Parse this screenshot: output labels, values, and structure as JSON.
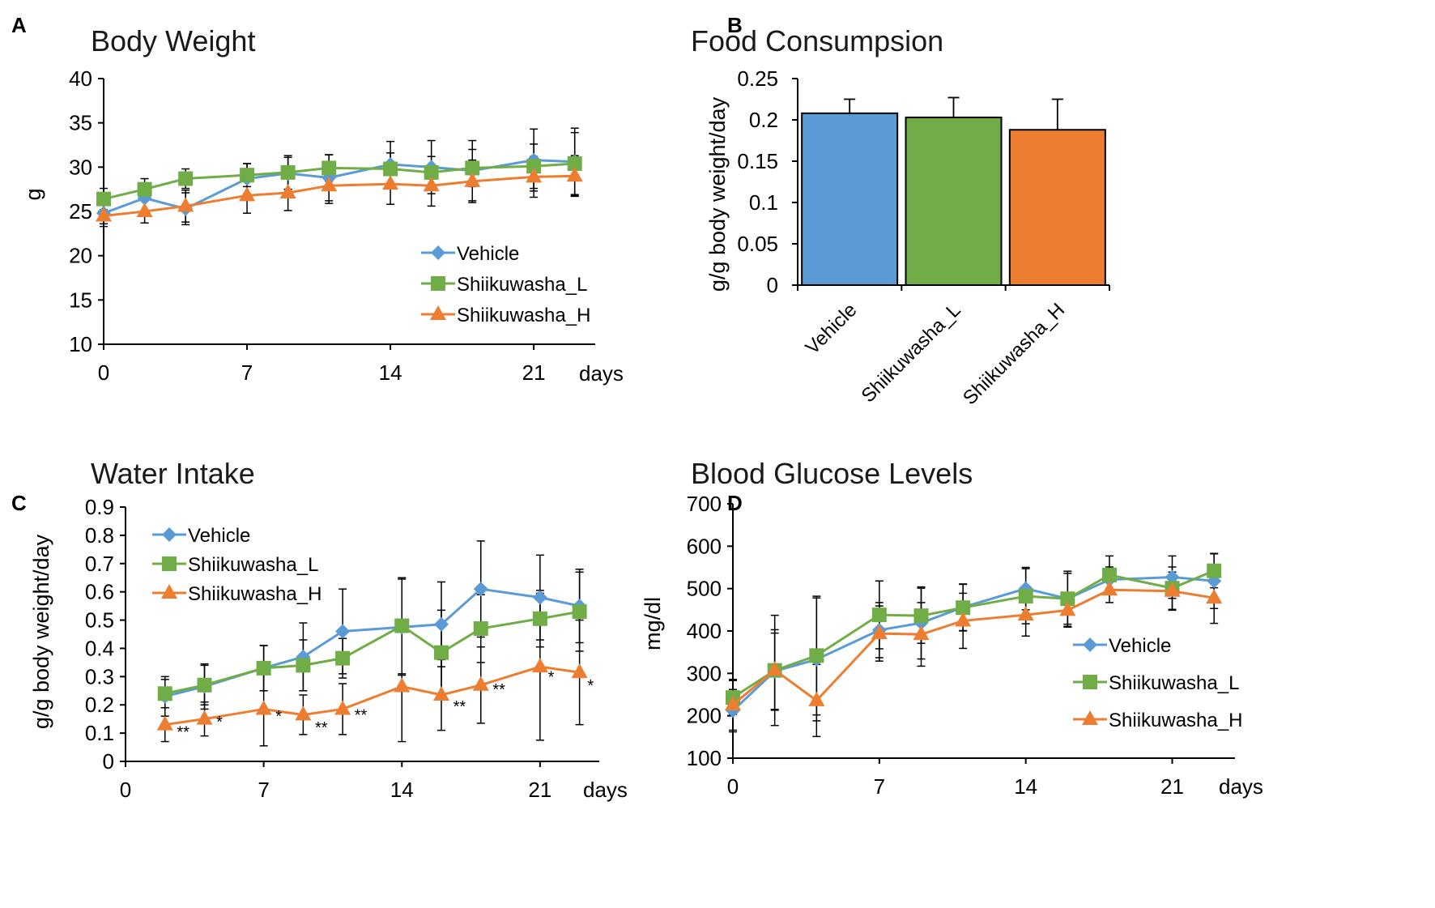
{
  "colors": {
    "vehicle": "#5b9bd5",
    "low": "#70ad47",
    "high": "#ed7d31",
    "axis": "#000000"
  },
  "panels": {
    "A": {
      "letter": "A"
    },
    "B": {
      "letter": "B"
    },
    "C": {
      "letter": "C"
    },
    "D": {
      "letter": "D"
    }
  },
  "chart_data": [
    {
      "id": "A",
      "type": "line",
      "title": "Body Weight",
      "xlabel": "days",
      "ylabel": "g",
      "xlim": [
        0,
        24
      ],
      "xticks": [
        0,
        7,
        14,
        21
      ],
      "ylim": [
        10,
        40
      ],
      "yticks": [
        10,
        15,
        20,
        25,
        30,
        35,
        40
      ],
      "legend_position": "bottom-right",
      "series": [
        {
          "name": "Vehicle",
          "key": "vehicle",
          "marker": "diamond",
          "x": [
            0,
            2,
            4,
            7,
            9,
            11,
            14,
            16,
            18,
            21,
            23
          ],
          "y": [
            24.8,
            26.5,
            25.3,
            28.7,
            29.3,
            28.8,
            30.3,
            30.0,
            29.6,
            30.8,
            30.6
          ],
          "err": [
            1.2,
            1.5,
            1.8,
            1.7,
            1.8,
            2.6,
            2.6,
            3.0,
            3.4,
            3.5,
            3.8
          ]
        },
        {
          "name": "Shiikuwasha_L",
          "key": "low",
          "marker": "square",
          "x": [
            0,
            2,
            4,
            7,
            9,
            11,
            14,
            16,
            18,
            21,
            23
          ],
          "y": [
            26.4,
            27.5,
            28.7,
            29.1,
            29.4,
            29.9,
            29.8,
            29.4,
            29.9,
            30.1,
            30.4
          ],
          "err": [
            1.2,
            1.2,
            1.1,
            1.3,
            1.9,
            1.5,
            1.8,
            1.8,
            2.1,
            2.5,
            3.5
          ]
        },
        {
          "name": "Shiikuwasha_H",
          "key": "high",
          "marker": "triangle",
          "x": [
            0,
            2,
            4,
            7,
            9,
            11,
            14,
            16,
            18,
            21,
            23
          ],
          "y": [
            24.5,
            25.0,
            25.6,
            26.8,
            27.1,
            27.9,
            28.1,
            27.9,
            28.4,
            28.9,
            29.0
          ],
          "err": [
            1.2,
            1.3,
            1.8,
            2.0,
            2.0,
            2.0,
            2.3,
            2.3,
            2.4,
            2.3,
            2.3
          ]
        }
      ]
    },
    {
      "id": "B",
      "type": "bar",
      "title": "Food Consumpsion",
      "ylabel": "g/g body weight/day",
      "categories": [
        "Vehicle",
        "Shiikuwasha_L",
        "Shiikuwasha_H"
      ],
      "category_keys": [
        "vehicle",
        "low",
        "high"
      ],
      "values": [
        0.208,
        0.203,
        0.188
      ],
      "err": [
        0.017,
        0.024,
        0.037
      ],
      "ylim": [
        0,
        0.25
      ],
      "yticks": [
        0,
        0.05,
        0.1,
        0.15,
        0.2,
        0.25
      ],
      "yticklabels": [
        "0",
        "0.05",
        "0.1",
        "0.15",
        "0.2",
        "0.25"
      ]
    },
    {
      "id": "C",
      "type": "line",
      "title": "Water Intake",
      "xlabel": "days",
      "ylabel": "g/g body weight/day",
      "xlim": [
        0,
        24
      ],
      "xticks": [
        0,
        7,
        14,
        21
      ],
      "ylim": [
        0,
        0.9
      ],
      "yticks": [
        0,
        0.1,
        0.2,
        0.3,
        0.4,
        0.5,
        0.6,
        0.7,
        0.8,
        0.9
      ],
      "yticklabels": [
        "0",
        "0.1",
        "0.2",
        "0.3",
        "0.4",
        "0.5",
        "0.6",
        "0.7",
        "0.8",
        "0.9"
      ],
      "legend_position": "top-left",
      "series": [
        {
          "name": "Vehicle",
          "key": "vehicle",
          "marker": "diamond",
          "x": [
            2,
            4,
            7,
            9,
            11,
            14,
            16,
            18,
            21,
            23
          ],
          "y": [
            0.23,
            0.265,
            0.33,
            0.37,
            0.46,
            0.475,
            0.485,
            0.61,
            0.58,
            0.55
          ],
          "err": [
            0.07,
            0.08,
            0.08,
            0.12,
            0.15,
            0.17,
            0.15,
            0.17,
            0.15,
            0.13
          ]
        },
        {
          "name": "Shiikuwasha_L",
          "key": "low",
          "marker": "square",
          "x": [
            2,
            4,
            7,
            9,
            11,
            14,
            16,
            18,
            21,
            23
          ],
          "y": [
            0.24,
            0.27,
            0.33,
            0.34,
            0.365,
            0.48,
            0.385,
            0.47,
            0.505,
            0.53
          ],
          "err": [
            0.05,
            0.07,
            0.08,
            0.09,
            0.07,
            0.17,
            0.15,
            0.12,
            0.1,
            0.14
          ]
        },
        {
          "name": "Shiikuwasha_H",
          "key": "high",
          "marker": "triangle",
          "x": [
            2,
            4,
            7,
            9,
            11,
            14,
            16,
            18,
            21,
            23
          ],
          "y": [
            0.13,
            0.15,
            0.185,
            0.165,
            0.185,
            0.265,
            0.235,
            0.27,
            0.335,
            0.315
          ],
          "err": [
            0.06,
            0.06,
            0.13,
            0.07,
            0.09,
            0.195,
            0.125,
            0.135,
            0.26,
            0.185
          ]
        }
      ],
      "annotations": [
        {
          "x": 2.6,
          "y": 0.085,
          "text": "**"
        },
        {
          "x": 4.6,
          "y": 0.12,
          "text": "*"
        },
        {
          "x": 7.6,
          "y": 0.14,
          "text": "*"
        },
        {
          "x": 9.6,
          "y": 0.1,
          "text": "**"
        },
        {
          "x": 11.6,
          "y": 0.145,
          "text": "**"
        },
        {
          "x": 16.6,
          "y": 0.175,
          "text": "**"
        },
        {
          "x": 18.6,
          "y": 0.235,
          "text": "**"
        },
        {
          "x": 21.4,
          "y": 0.28,
          "text": "*"
        },
        {
          "x": 23.4,
          "y": 0.25,
          "text": "*"
        }
      ]
    },
    {
      "id": "D",
      "type": "line",
      "title": "Blood Glucose Levels",
      "xlabel": "days",
      "ylabel": "mg/dl",
      "xlim": [
        0,
        24
      ],
      "xticks": [
        0,
        7,
        14,
        21
      ],
      "ylim": [
        100,
        700
      ],
      "yticks": [
        100,
        200,
        300,
        400,
        500,
        600,
        700
      ],
      "legend_position": "bottom-right",
      "series": [
        {
          "name": "Vehicle",
          "key": "vehicle",
          "marker": "diamond",
          "x": [
            0,
            2,
            4,
            7,
            9,
            11,
            14,
            16,
            18,
            21,
            23
          ],
          "y": [
            212,
            305,
            333,
            402,
            419,
            456,
            500,
            476,
            521,
            527,
            518
          ],
          "err": [
            50,
            90,
            145,
            65,
            85,
            55,
            50,
            60,
            30,
            50,
            65
          ]
        },
        {
          "name": "Shiikuwasha_L",
          "key": "low",
          "marker": "square",
          "x": [
            0,
            2,
            4,
            7,
            9,
            11,
            14,
            16,
            18,
            21,
            23
          ],
          "y": [
            243,
            307,
            342,
            438,
            436,
            455,
            482,
            476,
            532,
            501,
            542
          ],
          "err": [
            40,
            130,
            140,
            80,
            65,
            55,
            65,
            65,
            45,
            50,
            40
          ]
        },
        {
          "name": "Shiikuwasha_H",
          "key": "high",
          "marker": "triangle",
          "x": [
            0,
            2,
            4,
            7,
            9,
            11,
            14,
            16,
            18,
            21,
            23
          ],
          "y": [
            226,
            308,
            236,
            394,
            392,
            424,
            438,
            449,
            497,
            494,
            478
          ],
          "err": [
            60,
            95,
            85,
            65,
            75,
            65,
            50,
            40,
            30,
            45,
            60
          ]
        }
      ]
    }
  ]
}
